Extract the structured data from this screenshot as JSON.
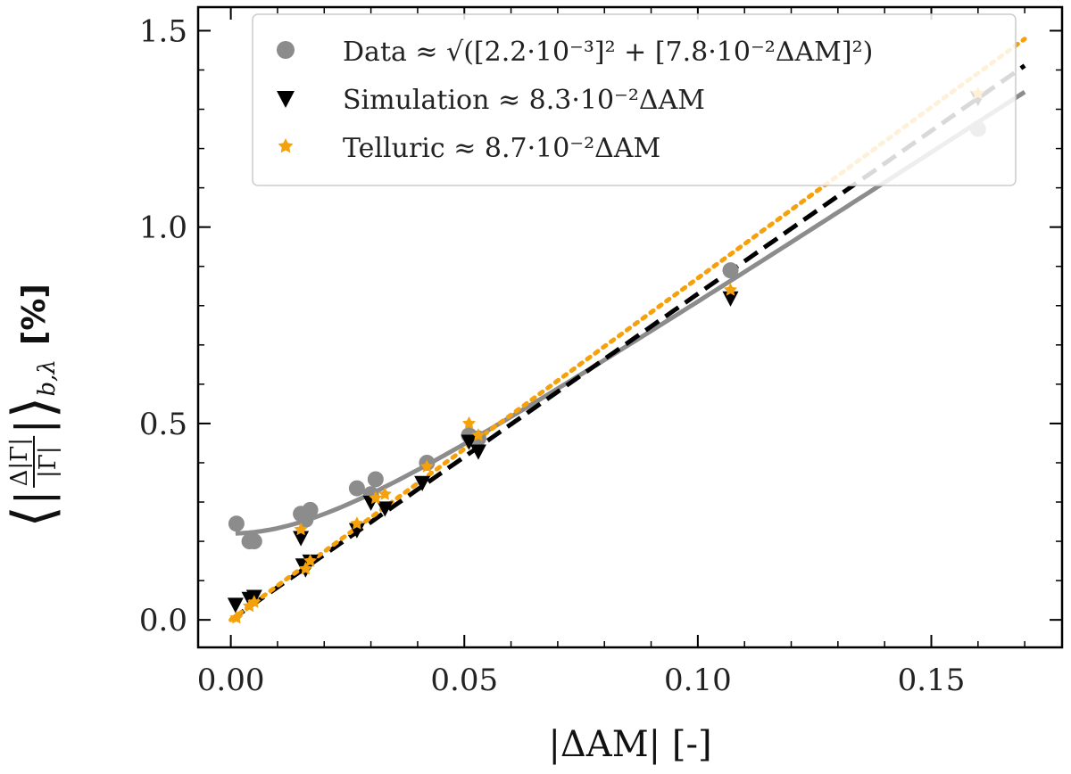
{
  "chart_data": {
    "type": "scatter",
    "xlabel": "|ΔAM| [-]",
    "ylabel": "⟨|Δ|Γ| / |Γ||⟩_{b,λ} [%]",
    "ylabel_parts": {
      "numerator": "Δ|Γ|",
      "denominator": "|Γ|",
      "subscript": "b,λ",
      "unit": "[%]"
    },
    "xlim": [
      -0.007,
      0.178
    ],
    "ylim": [
      -0.07,
      1.56
    ],
    "xticks": [
      0.0,
      0.05,
      0.1,
      0.15
    ],
    "xtick_labels": [
      "0.00",
      "0.05",
      "0.10",
      "0.15"
    ],
    "yticks": [
      0.0,
      0.5,
      1.0,
      1.5
    ],
    "ytick_labels": [
      "0.0",
      "0.5",
      "1.0",
      "1.5"
    ],
    "grid": false,
    "legend_position": "top",
    "series": [
      {
        "name": "Data ≈ √([2.2·10⁻³]² + [7.8·10⁻²ΔAM]²)",
        "legend_label": "Data ≈ √([2.2·10⁻³]² + [7.8·10⁻²ΔAM]²)",
        "marker": "circle",
        "color": "#8c8c8c",
        "x": [
          0.0012,
          0.004,
          0.005,
          0.015,
          0.016,
          0.017,
          0.027,
          0.03,
          0.031,
          0.042,
          0.051,
          0.053,
          0.107,
          0.16
        ],
        "y": [
          0.245,
          0.2,
          0.2,
          0.27,
          0.255,
          0.28,
          0.335,
          0.32,
          0.358,
          0.4,
          0.47,
          0.462,
          0.89,
          1.25
        ],
        "fit": {
          "kind": "sqrt",
          "a": 0.22,
          "b": 7.8,
          "x_range": [
            0.001,
            0.17
          ],
          "style": "solid"
        }
      },
      {
        "name": "Simulation ≈ 8.3·10⁻²ΔAM",
        "legend_label": "Simulation ≈ 8.3·10⁻²ΔAM",
        "marker": "triangle-down",
        "color": "#000000",
        "x": [
          0.001,
          0.004,
          0.005,
          0.015,
          0.0155,
          0.016,
          0.017,
          0.027,
          0.03,
          0.033,
          0.041,
          0.051,
          0.053,
          0.107,
          0.16
        ],
        "y": [
          0.04,
          0.055,
          0.06,
          0.21,
          0.14,
          0.13,
          0.15,
          0.23,
          0.3,
          0.285,
          0.35,
          0.455,
          0.43,
          0.82,
          1.33
        ],
        "fit": {
          "kind": "linear",
          "slope": 8.3,
          "x_range": [
            0.0,
            0.17
          ],
          "style": "dashed"
        }
      },
      {
        "name": "Telluric ≈ 8.7·10⁻²ΔAM",
        "legend_label": "Telluric ≈ 8.7·10⁻²ΔAM",
        "marker": "star",
        "color": "#f5a10c",
        "x": [
          0.0012,
          0.004,
          0.005,
          0.015,
          0.016,
          0.017,
          0.027,
          0.031,
          0.033,
          0.042,
          0.051,
          0.053,
          0.107,
          0.16
        ],
        "y": [
          0.005,
          0.035,
          0.045,
          0.23,
          0.13,
          0.15,
          0.245,
          0.31,
          0.32,
          0.39,
          0.5,
          0.47,
          0.84,
          1.34
        ],
        "fit": {
          "kind": "linear",
          "slope": 8.7,
          "x_range": [
            0.0,
            0.17
          ],
          "style": "dotted"
        }
      }
    ]
  }
}
